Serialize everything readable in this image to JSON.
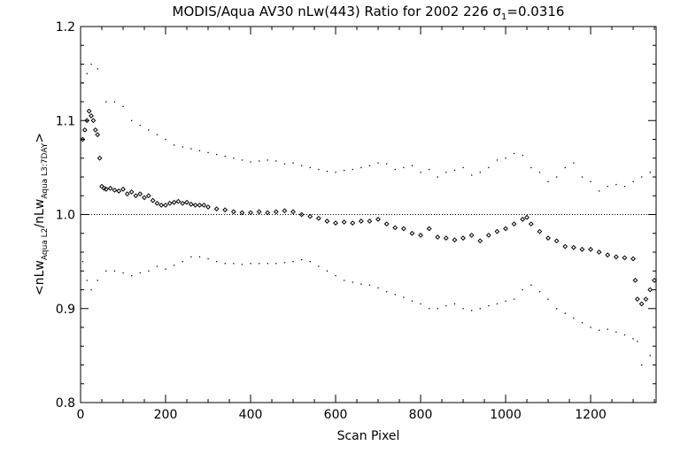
{
  "chart_data": {
    "type": "scatter",
    "title_main": "MODIS/Aqua AV30 nLw(443) Ratio for 2002 226 ",
    "title_sigma": "σ",
    "title_sigma_sub": "1",
    "title_value": "=0.0316",
    "xlabel": "Scan Pixel",
    "ylabel_parts": [
      "<nLw",
      "Aqua L2",
      "/nLw",
      "Aqua L3:7DAY",
      ">"
    ],
    "xlim": [
      0,
      1354
    ],
    "ylim": [
      0.8,
      1.2
    ],
    "x_ticks": [
      "0",
      "200",
      "400",
      "600",
      "800",
      "1000",
      "1200"
    ],
    "y_ticks": [
      "0.8",
      "0.9",
      "1.0",
      "1.1",
      "1.2"
    ],
    "reference_line": 1.0,
    "grid": false,
    "series": [
      {
        "marker": "diamond",
        "x": [
          5,
          10,
          15,
          20,
          25,
          30,
          35,
          40,
          45,
          50,
          55,
          60,
          70,
          80,
          90,
          100,
          110,
          120,
          130,
          140,
          150,
          160,
          170,
          180,
          190,
          200,
          210,
          220,
          230,
          240,
          250,
          260,
          270,
          280,
          290,
          300,
          320,
          340,
          360,
          380,
          400,
          420,
          440,
          460,
          480,
          500,
          520,
          540,
          560,
          580,
          600,
          620,
          640,
          660,
          680,
          700,
          720,
          740,
          760,
          780,
          800,
          820,
          840,
          860,
          880,
          900,
          920,
          940,
          960,
          980,
          1000,
          1020,
          1040,
          1050,
          1060,
          1080,
          1100,
          1120,
          1140,
          1160,
          1180,
          1200,
          1220,
          1240,
          1260,
          1280,
          1300,
          1305,
          1310,
          1320,
          1330,
          1340,
          1350
        ],
        "y": [
          1.08,
          1.09,
          1.1,
          1.11,
          1.105,
          1.1,
          1.09,
          1.085,
          1.06,
          1.03,
          1.028,
          1.027,
          1.028,
          1.026,
          1.025,
          1.027,
          1.022,
          1.024,
          1.02,
          1.022,
          1.018,
          1.02,
          1.015,
          1.012,
          1.01,
          1.01,
          1.012,
          1.013,
          1.014,
          1.012,
          1.013,
          1.011,
          1.01,
          1.01,
          1.01,
          1.008,
          1.006,
          1.005,
          1.003,
          1.002,
          1.002,
          1.003,
          1.002,
          1.003,
          1.004,
          1.003,
          1.0,
          0.998,
          0.996,
          0.993,
          0.991,
          0.992,
          0.991,
          0.993,
          0.993,
          0.995,
          0.99,
          0.986,
          0.985,
          0.98,
          0.978,
          0.985,
          0.976,
          0.975,
          0.973,
          0.975,
          0.978,
          0.972,
          0.978,
          0.982,
          0.985,
          0.99,
          0.995,
          0.997,
          0.99,
          0.982,
          0.975,
          0.972,
          0.966,
          0.965,
          0.963,
          0.963,
          0.96,
          0.957,
          0.955,
          0.954,
          0.953,
          0.93,
          0.91,
          0.905,
          0.91,
          0.92,
          0.93
        ]
      },
      {
        "marker": "dot",
        "x": [
          5,
          15,
          25,
          40,
          60,
          80,
          100,
          120,
          140,
          160,
          180,
          200,
          220,
          240,
          260,
          280,
          300,
          320,
          340,
          360,
          380,
          400,
          420,
          440,
          460,
          480,
          500,
          520,
          540,
          560,
          580,
          600,
          620,
          640,
          660,
          680,
          700,
          720,
          740,
          760,
          780,
          800,
          820,
          840,
          860,
          880,
          900,
          920,
          940,
          960,
          980,
          1000,
          1020,
          1040,
          1060,
          1080,
          1100,
          1120,
          1140,
          1160,
          1180,
          1200,
          1220,
          1240,
          1260,
          1280,
          1300,
          1320,
          1340
        ],
        "y": [
          1.14,
          1.15,
          1.16,
          1.155,
          1.12,
          1.12,
          1.115,
          1.1,
          1.095,
          1.09,
          1.085,
          1.08,
          1.074,
          1.072,
          1.07,
          1.068,
          1.066,
          1.064,
          1.062,
          1.06,
          1.058,
          1.056,
          1.057,
          1.058,
          1.057,
          1.054,
          1.055,
          1.052,
          1.05,
          1.048,
          1.046,
          1.045,
          1.047,
          1.048,
          1.05,
          1.052,
          1.055,
          1.054,
          1.048,
          1.05,
          1.052,
          1.045,
          1.048,
          1.04,
          1.045,
          1.047,
          1.05,
          1.042,
          1.045,
          1.05,
          1.058,
          1.06,
          1.065,
          1.063,
          1.05,
          1.045,
          1.035,
          1.04,
          1.05,
          1.055,
          1.04,
          1.035,
          1.025,
          1.03,
          1.032,
          1.03,
          1.035,
          1.04,
          1.045
        ]
      },
      {
        "marker": "dot",
        "x": [
          5,
          15,
          25,
          40,
          60,
          80,
          100,
          120,
          140,
          160,
          180,
          200,
          220,
          240,
          260,
          280,
          300,
          320,
          340,
          360,
          380,
          400,
          420,
          440,
          460,
          480,
          500,
          520,
          540,
          560,
          580,
          600,
          620,
          640,
          660,
          680,
          700,
          720,
          740,
          760,
          780,
          800,
          820,
          840,
          860,
          880,
          900,
          920,
          940,
          960,
          980,
          1000,
          1020,
          1040,
          1060,
          1080,
          1100,
          1120,
          1140,
          1160,
          1180,
          1200,
          1220,
          1240,
          1260,
          1280,
          1300,
          1310,
          1320,
          1340
        ],
        "y": [
          0.95,
          0.93,
          0.92,
          0.93,
          0.94,
          0.94,
          0.938,
          0.935,
          0.938,
          0.94,
          0.945,
          0.942,
          0.946,
          0.95,
          0.955,
          0.955,
          0.953,
          0.95,
          0.948,
          0.948,
          0.947,
          0.948,
          0.948,
          0.948,
          0.948,
          0.949,
          0.95,
          0.952,
          0.95,
          0.945,
          0.94,
          0.935,
          0.93,
          0.928,
          0.926,
          0.925,
          0.922,
          0.918,
          0.915,
          0.912,
          0.908,
          0.905,
          0.9,
          0.9,
          0.903,
          0.905,
          0.9,
          0.898,
          0.9,
          0.903,
          0.905,
          0.908,
          0.91,
          0.92,
          0.925,
          0.918,
          0.91,
          0.9,
          0.895,
          0.89,
          0.885,
          0.88,
          0.877,
          0.878,
          0.875,
          0.872,
          0.868,
          0.865,
          0.84,
          0.85
        ]
      }
    ]
  }
}
